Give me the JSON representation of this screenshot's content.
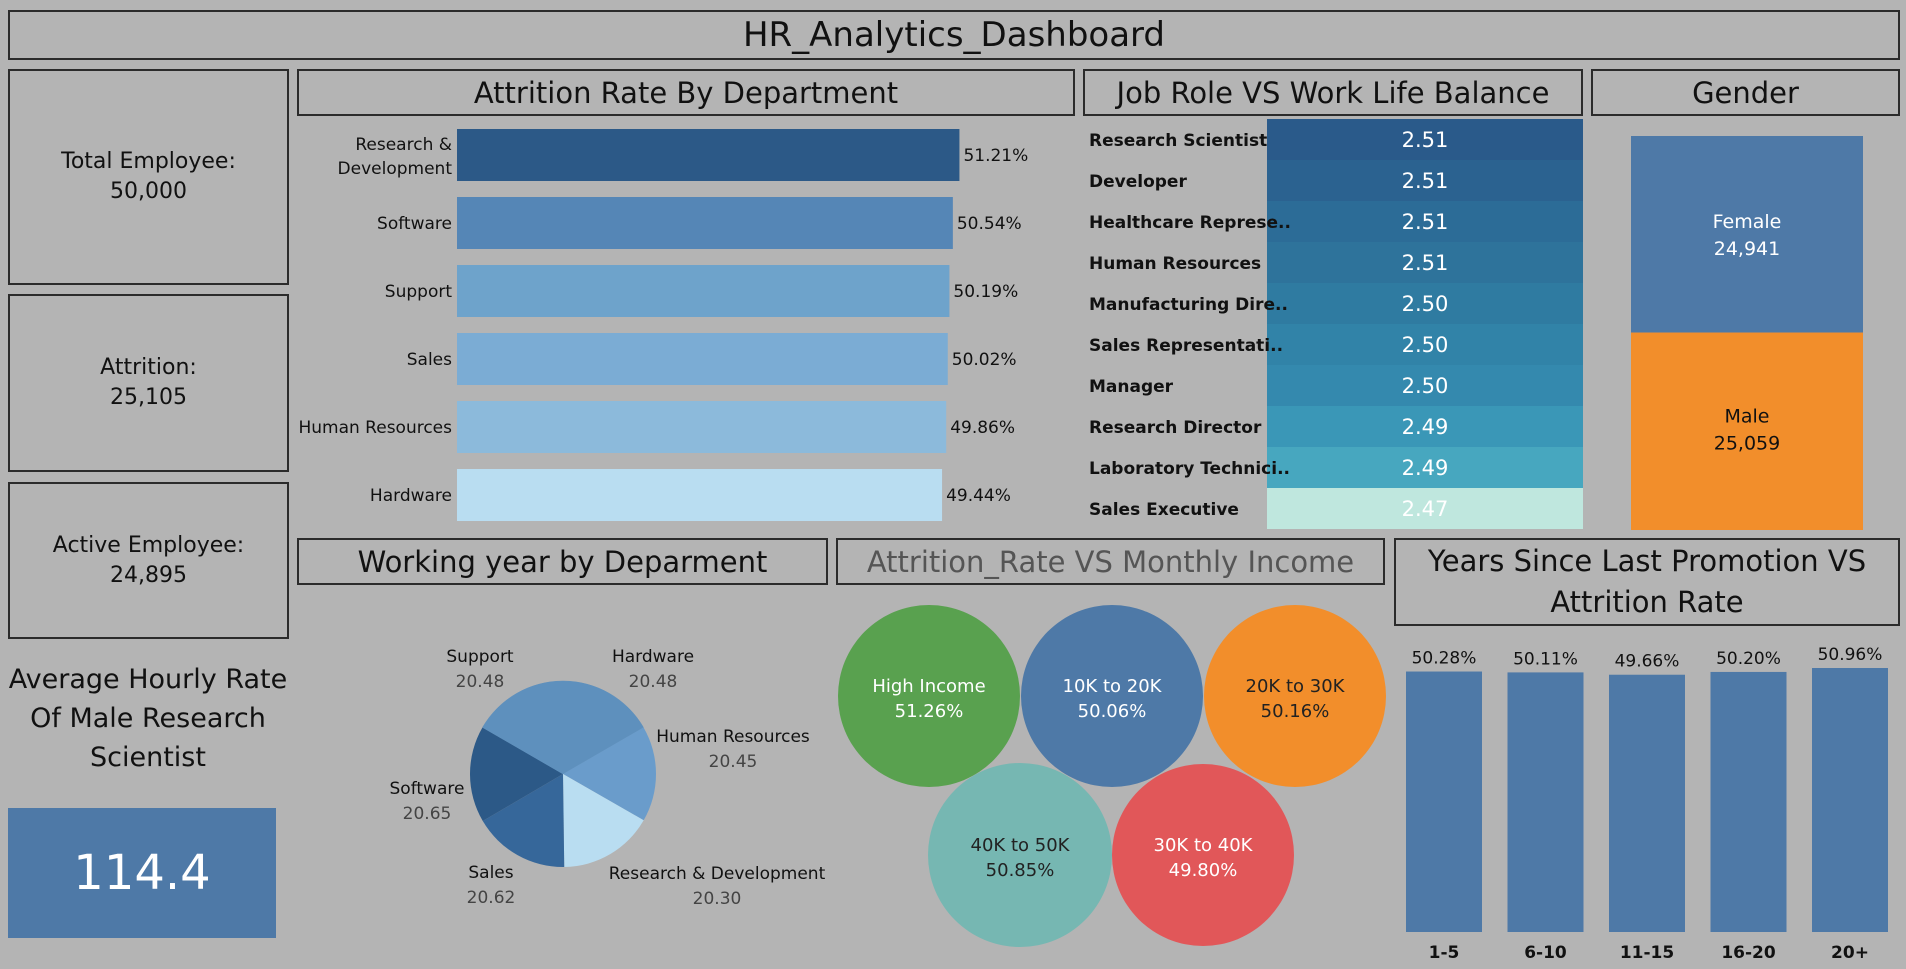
{
  "dashboard_title": "HR_Analytics_Dashboard",
  "kpis": {
    "total": {
      "label": "Total Employee:",
      "value": "50,000"
    },
    "attrition": {
      "label": "Attrition:",
      "value": "25,105"
    },
    "active": {
      "label": "Active Employee:",
      "value": "24,895"
    },
    "avg_hourly": {
      "label": "Average Hourly Rate Of Male Research Scientist",
      "value": "114.4"
    }
  },
  "panels": {
    "dept_title": "Attrition Rate By Department",
    "jobrole_title": "Job Role VS Work Life Balance",
    "gender_title": "Gender",
    "working_year_title": "Working year by Deparment",
    "income_title": "Attrition_Rate VS Monthly Income",
    "promotion_title": "Years Since Last Promotion VS Attrition Rate"
  },
  "colors": {
    "background": "#b4b4b4",
    "blue": "#4e79a7",
    "orange": "#f28e2b",
    "green": "#59a14f",
    "teal": "#76b7b2",
    "red": "#e15759"
  },
  "chart_data": [
    {
      "id": "dept",
      "type": "bar",
      "orientation": "horizontal",
      "categories": [
        "Research & Development",
        "Software",
        "Support",
        "Sales",
        "Human Resources",
        "Hardware"
      ],
      "values": [
        51.21,
        50.54,
        50.19,
        50.02,
        49.86,
        49.44
      ],
      "labels": [
        "51.21%",
        "50.54%",
        "50.19%",
        "50.02%",
        "49.86%",
        "49.44%"
      ],
      "colors": [
        "#2c5987",
        "#5586b6",
        "#6ea3cb",
        "#7bacd4",
        "#8cbadb",
        "#b9ddf1"
      ]
    },
    {
      "id": "jobrole",
      "type": "heatmap",
      "categories": [
        "Research Scientist",
        "Developer",
        "Healthcare Represe..",
        "Human Resources",
        "Manufacturing Dire..",
        "Sales Representati..",
        "Manager",
        "Research Director",
        "Laboratory Technici..",
        "Sales Executive"
      ],
      "values": [
        2.51,
        2.51,
        2.51,
        2.51,
        2.5,
        2.5,
        2.5,
        2.49,
        2.49,
        2.47
      ],
      "labels": [
        "2.51",
        "2.51",
        "2.51",
        "2.51",
        "2.50",
        "2.50",
        "2.50",
        "2.49",
        "2.49",
        "2.47"
      ],
      "colors": [
        "#2a5a8a",
        "#2b6290",
        "#2c6c97",
        "#2e739b",
        "#2f7ba1",
        "#3183a8",
        "#3489ae",
        "#3a97b7",
        "#47a7bf",
        "#bfe7de"
      ]
    },
    {
      "id": "gender",
      "type": "bar",
      "stacked": true,
      "categories": [
        "Female",
        "Male"
      ],
      "values": [
        24941,
        25059
      ],
      "labels": [
        "24,941",
        "25,059"
      ],
      "colors": [
        "#4e79a7",
        "#f28e2b"
      ]
    },
    {
      "id": "working_year",
      "type": "pie",
      "categories": [
        "Hardware",
        "Human Resources",
        "Research & Development",
        "Sales",
        "Software",
        "Support"
      ],
      "values": [
        20.48,
        20.45,
        20.3,
        20.62,
        20.65,
        20.48
      ],
      "labels": [
        "20.48",
        "20.45",
        "20.30",
        "20.62",
        "20.65",
        "20.48"
      ],
      "colors": [
        "#5e90bd",
        "#6a9ccb",
        "#b9ddf1",
        "#36679a",
        "#2c5987",
        "#5e90bd"
      ]
    },
    {
      "id": "income",
      "type": "scatter",
      "subtype": "bubble",
      "categories": [
        "High Income",
        "10K to 20K",
        "20K to 30K",
        "40K to 50K",
        "30K to 40K"
      ],
      "values": [
        51.26,
        50.06,
        50.16,
        50.85,
        49.8
      ],
      "labels": [
        "51.26%",
        "50.06%",
        "50.16%",
        "50.85%",
        "49.80%"
      ],
      "colors": [
        "#59a14f",
        "#4e79a7",
        "#f28e2b",
        "#76b7b2",
        "#e15759"
      ]
    },
    {
      "id": "promotion",
      "type": "bar",
      "categories": [
        "1-5",
        "6-10",
        "11-15",
        "16-20",
        "20+"
      ],
      "values": [
        50.28,
        50.11,
        49.66,
        50.2,
        50.96
      ],
      "labels": [
        "50.28%",
        "50.11%",
        "49.66%",
        "50.20%",
        "50.96%"
      ],
      "color": "#4e79a7"
    }
  ]
}
